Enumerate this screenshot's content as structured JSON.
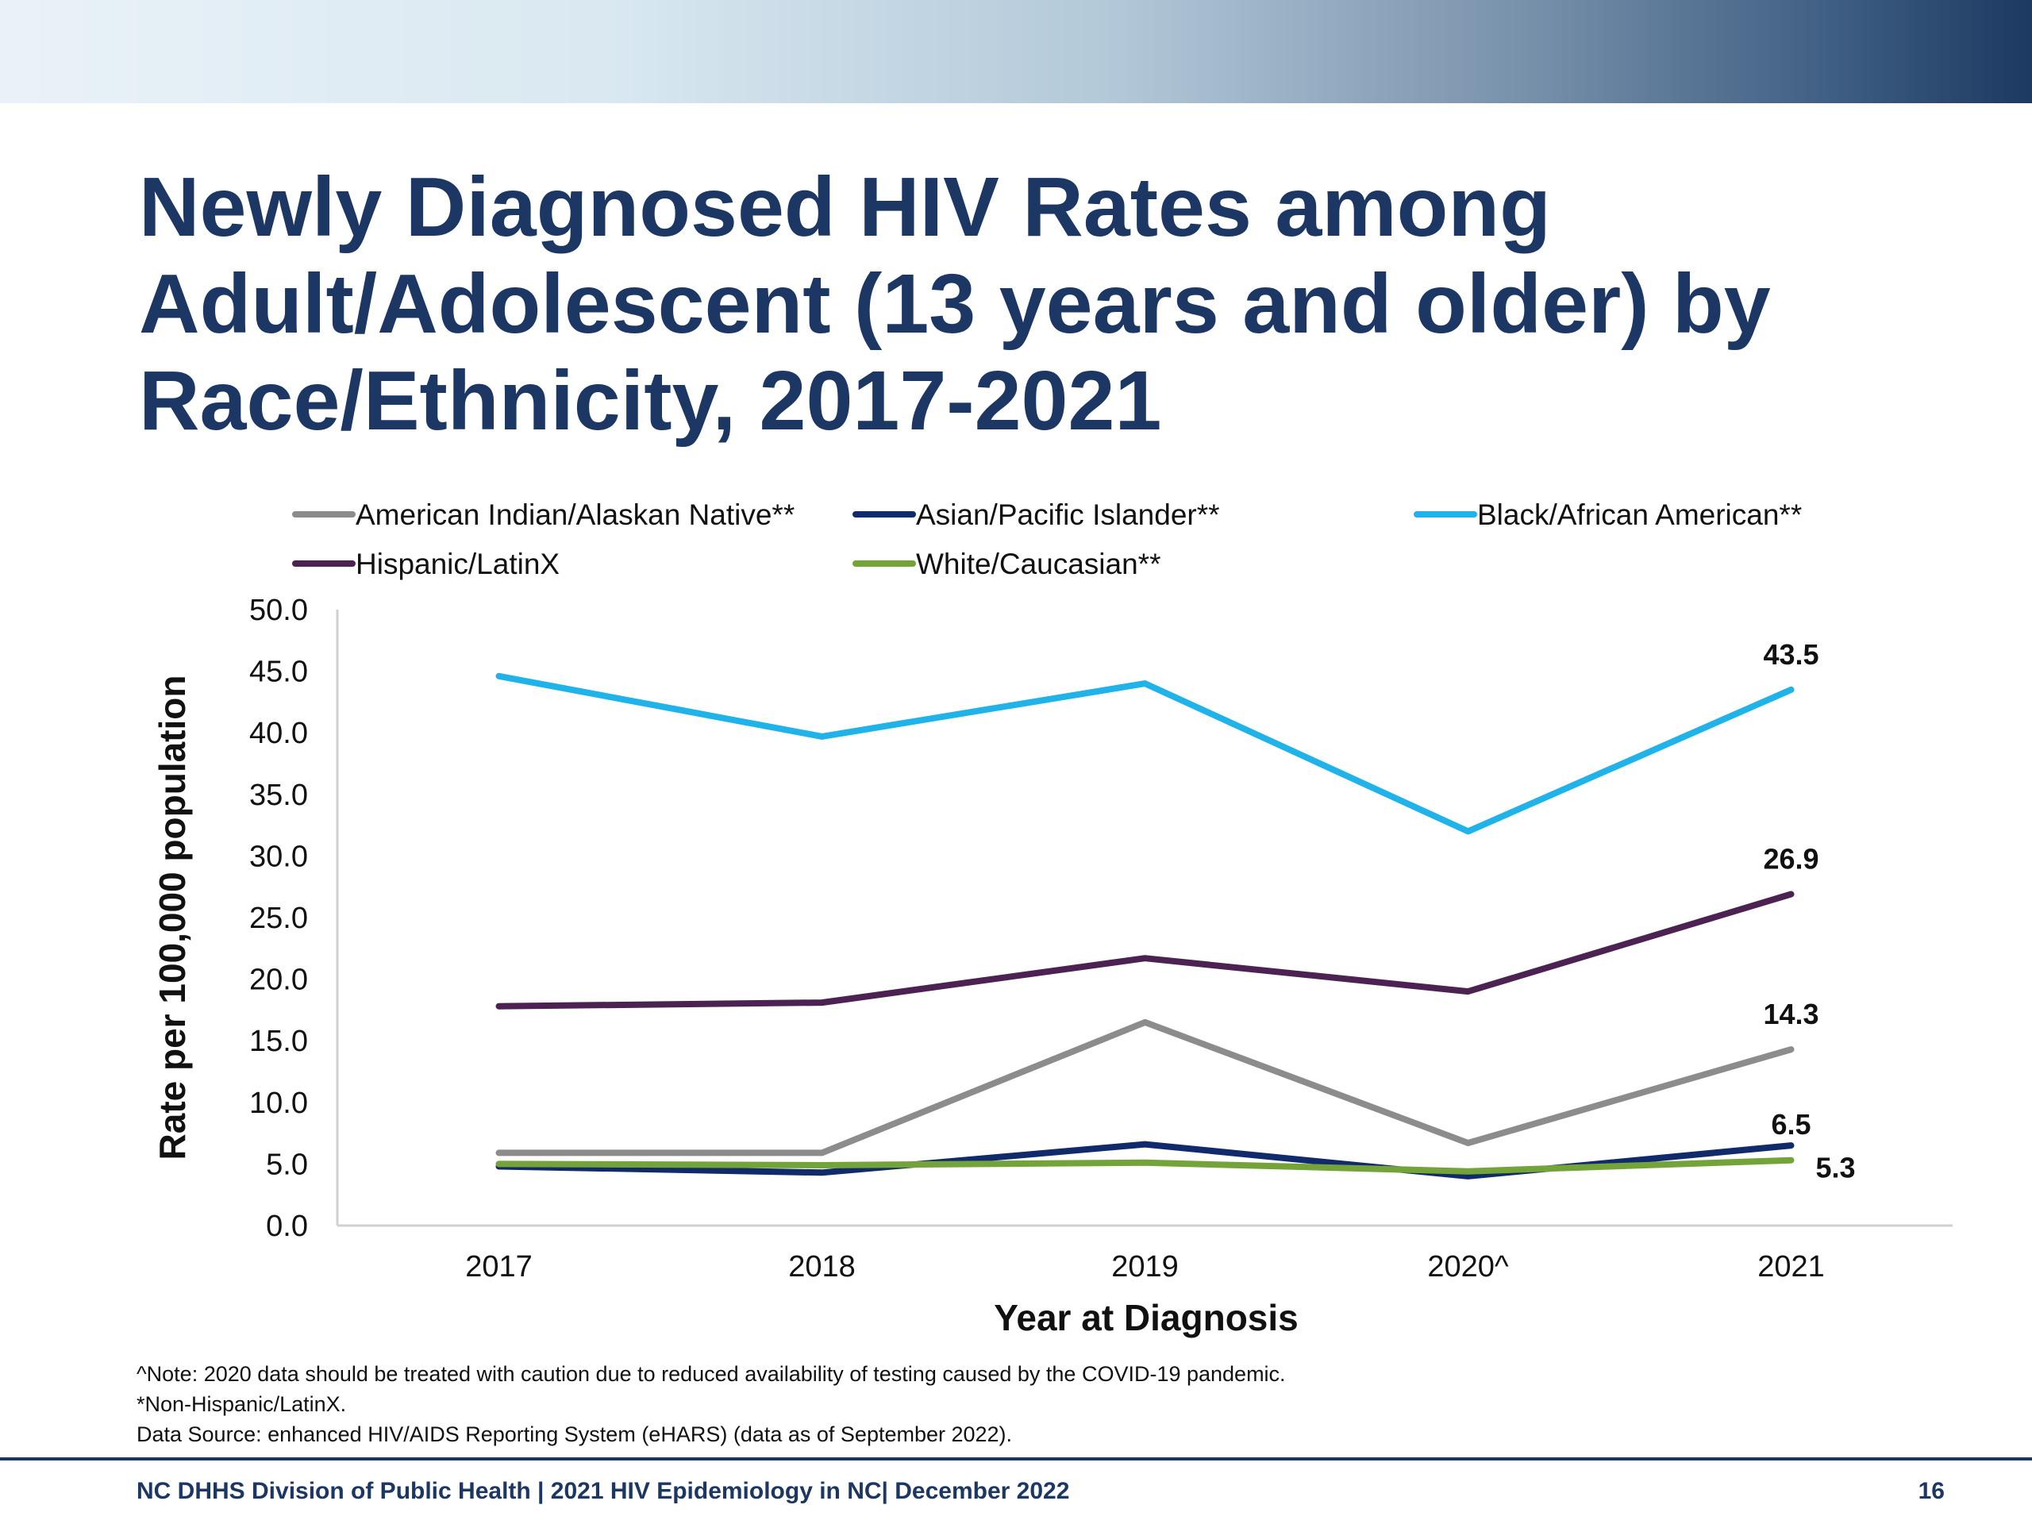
{
  "slide": {
    "title_lines": [
      "Newly Diagnosed HIV Rates among",
      "Adult/Adolescent (13 years and older) by",
      "Race/Ethnicity, 2017-2021"
    ],
    "notes": [
      "^Note: 2020 data should be treated with caution due to reduced availability  of testing caused by the COVID-19 pandemic.",
      "*Non-Hispanic/LatinX.",
      "Data Source: enhanced HIV/AIDS Reporting System (eHARS) (data as of September 2022)."
    ],
    "footer": "NC DHHS Division of Public Health | 2021 HIV Epidemiology in NC| December 2022",
    "page_number": "16"
  },
  "chart_data": {
    "type": "line",
    "title": "",
    "xlabel": "Year at Diagnosis",
    "ylabel": "Rate per 100,000 population",
    "ylim": [
      0,
      50
    ],
    "yticks": [
      "0.0",
      "5.0",
      "10.0",
      "15.0",
      "20.0",
      "25.0",
      "30.0",
      "35.0",
      "40.0",
      "45.0",
      "50.0"
    ],
    "categories": [
      "2017",
      "2018",
      "2019",
      "2020^",
      "2021"
    ],
    "legend_position": "top",
    "grid": false,
    "series": [
      {
        "name": "American Indian/Alaskan Native**",
        "color": "#8c8c8c",
        "values": [
          5.9,
          5.9,
          16.5,
          6.7,
          14.3
        ],
        "end_label": "14.3"
      },
      {
        "name": "Asian/Pacific Islander**",
        "color": "#102a6b",
        "values": [
          4.8,
          4.3,
          6.6,
          4.0,
          6.5
        ],
        "end_label": "6.5"
      },
      {
        "name": "Black/African American**",
        "color": "#1fb3ea",
        "values": [
          44.6,
          39.7,
          44.0,
          32.0,
          43.5
        ],
        "end_label": "43.5"
      },
      {
        "name": "Hispanic/LatinX",
        "color": "#4b2252",
        "values": [
          17.8,
          18.1,
          21.7,
          19.0,
          26.9
        ],
        "end_label": "26.9"
      },
      {
        "name": "White/Caucasian**",
        "color": "#74a33a",
        "values": [
          5.0,
          4.9,
          5.1,
          4.4,
          5.3
        ],
        "end_label": "5.3"
      }
    ]
  }
}
